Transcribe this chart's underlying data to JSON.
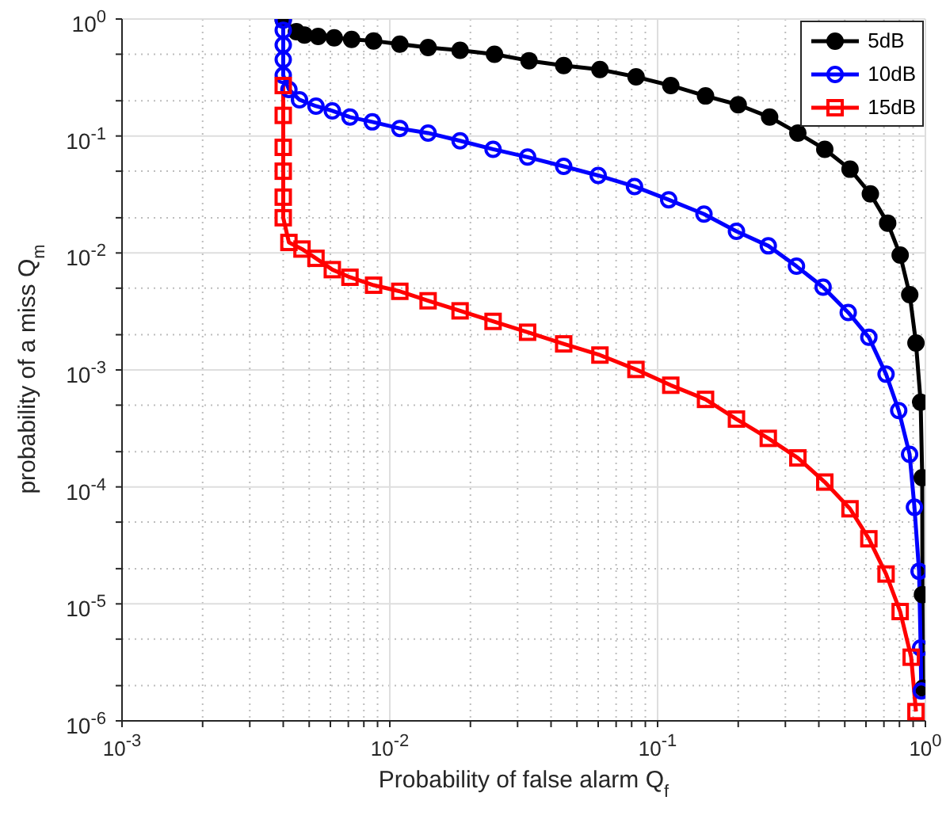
{
  "chart_data": {
    "type": "line",
    "xlabel": "Probability of false alarm Q$_{f}$",
    "ylabel": "probability of a miss Q$_{m}$",
    "log": "xy",
    "grid": true,
    "legend": "top right",
    "line_style": "solid",
    "xlim": [
      0.001,
      1
    ],
    "ylim": [
      1e-06,
      1
    ],
    "xticks": [
      {
        "value": 0.001,
        "label": "10$^{-3}$"
      },
      {
        "value": 0.002,
        "label": null
      },
      {
        "value": 0.003,
        "label": null
      },
      {
        "value": 0.004,
        "label": null
      },
      {
        "value": 0.005,
        "label": null
      },
      {
        "value": 0.006,
        "label": null
      },
      {
        "value": 0.007,
        "label": null
      },
      {
        "value": 0.008,
        "label": null
      },
      {
        "value": 0.009,
        "label": null
      },
      {
        "value": 0.01,
        "label": "10$^{-2}$"
      },
      {
        "value": 0.02,
        "label": null
      },
      {
        "value": 0.03,
        "label": null
      },
      {
        "value": 0.04,
        "label": null
      },
      {
        "value": 0.05,
        "label": null
      },
      {
        "value": 0.06,
        "label": null
      },
      {
        "value": 0.07,
        "label": null
      },
      {
        "value": 0.08,
        "label": null
      },
      {
        "value": 0.09,
        "label": null
      },
      {
        "value": 0.1,
        "label": "10$^{-1}$"
      },
      {
        "value": 0.2,
        "label": null
      },
      {
        "value": 0.3,
        "label": null
      },
      {
        "value": 0.4,
        "label": null
      },
      {
        "value": 0.5,
        "label": null
      },
      {
        "value": 0.6,
        "label": null
      },
      {
        "value": 0.7,
        "label": null
      },
      {
        "value": 0.8,
        "label": null
      },
      {
        "value": 0.9,
        "label": null
      },
      {
        "value": 1,
        "label": "10$^{0}$"
      }
    ],
    "yticks": [
      {
        "value": 1e-06,
        "label": "10$^{-6}$"
      },
      {
        "value": 2e-06,
        "label": null
      },
      {
        "value": 5e-06,
        "label": null
      },
      {
        "value": 1e-05,
        "label": "10$^{-5}$"
      },
      {
        "value": 2e-05,
        "label": null
      },
      {
        "value": 5e-05,
        "label": null
      },
      {
        "value": 0.0001,
        "label": "10$^{-4}$"
      },
      {
        "value": 0.0002,
        "label": null
      },
      {
        "value": 0.0005,
        "label": null
      },
      {
        "value": 0.001,
        "label": "10$^{-3}$"
      },
      {
        "value": 0.002,
        "label": null
      },
      {
        "value": 0.005,
        "label": null
      },
      {
        "value": 0.01,
        "label": "10$^{-2}$"
      },
      {
        "value": 0.02,
        "label": null
      },
      {
        "value": 0.05,
        "label": null
      },
      {
        "value": 0.1,
        "label": "10$^{-1}$"
      },
      {
        "value": 0.2,
        "label": null
      },
      {
        "value": 0.5,
        "label": null
      },
      {
        "value": 1,
        "label": "10$^{0}$"
      }
    ],
    "series": [
      {
        "name": "5dB",
        "color": "#000000",
        "marker": "circle",
        "x": [
          0.004,
          0.00448,
          0.0048,
          0.0054,
          0.0062,
          0.0072,
          0.0087,
          0.0109,
          0.0139,
          0.0183,
          0.0246,
          0.0331,
          0.0446,
          0.0609,
          0.0831,
          0.112,
          0.151,
          0.2,
          0.262,
          0.334,
          0.421,
          0.523,
          0.623,
          0.723,
          0.805,
          0.874,
          0.922,
          0.96,
          0.973,
          0.975,
          0.98
        ],
        "values": [
          0.98,
          0.78,
          0.73,
          0.71,
          0.69,
          0.67,
          0.65,
          0.61,
          0.57,
          0.54,
          0.5,
          0.44,
          0.4,
          0.37,
          0.32,
          0.27,
          0.22,
          0.185,
          0.145,
          0.106,
          0.077,
          0.052,
          0.032,
          0.018,
          0.0096,
          0.0044,
          0.0017,
          0.00053,
          0.00012,
          1.2e-05,
          1.9e-06
        ]
      },
      {
        "name": "10dB",
        "color": "#0000ff",
        "marker": "circle",
        "x": [
          0.004,
          0.004,
          0.004,
          0.004,
          0.004,
          0.0042,
          0.0046,
          0.0053,
          0.0061,
          0.0071,
          0.0086,
          0.0109,
          0.0139,
          0.0183,
          0.0243,
          0.0327,
          0.0446,
          0.06,
          0.082,
          0.11,
          0.149,
          0.197,
          0.259,
          0.33,
          0.415,
          0.515,
          0.615,
          0.713,
          0.795,
          0.873,
          0.91,
          0.947,
          0.96,
          0.965
        ],
        "values": [
          0.98,
          0.8,
          0.6,
          0.45,
          0.33,
          0.25,
          0.204,
          0.18,
          0.164,
          0.145,
          0.132,
          0.116,
          0.106,
          0.091,
          0.077,
          0.066,
          0.055,
          0.046,
          0.037,
          0.0285,
          0.0215,
          0.0153,
          0.0115,
          0.0077,
          0.0051,
          0.0031,
          0.0019,
          0.00092,
          0.00045,
          0.00019,
          6.7e-05,
          1.9e-05,
          4.2e-06,
          1.8e-06
        ]
      },
      {
        "name": "15dB",
        "color": "#ff0000",
        "marker": "square",
        "x": [
          0.004,
          0.004,
          0.004,
          0.004,
          0.004,
          0.004,
          0.0042,
          0.0047,
          0.0053,
          0.0061,
          0.0071,
          0.0087,
          0.0109,
          0.0139,
          0.0183,
          0.0243,
          0.0327,
          0.0446,
          0.0609,
          0.083,
          0.112,
          0.151,
          0.197,
          0.259,
          0.334,
          0.421,
          0.523,
          0.615,
          0.713,
          0.805,
          0.885,
          0.922
        ],
        "values": [
          0.27,
          0.15,
          0.08,
          0.05,
          0.03,
          0.02,
          0.0123,
          0.0108,
          0.009,
          0.0072,
          0.0062,
          0.0053,
          0.0047,
          0.0039,
          0.0032,
          0.0026,
          0.0021,
          0.00167,
          0.00134,
          0.00101,
          0.00074,
          0.00056,
          0.00038,
          0.00026,
          0.000177,
          0.00011,
          6.5e-05,
          3.6e-05,
          1.8e-05,
          8.6e-06,
          3.5e-06,
          1.2e-06
        ]
      }
    ]
  }
}
